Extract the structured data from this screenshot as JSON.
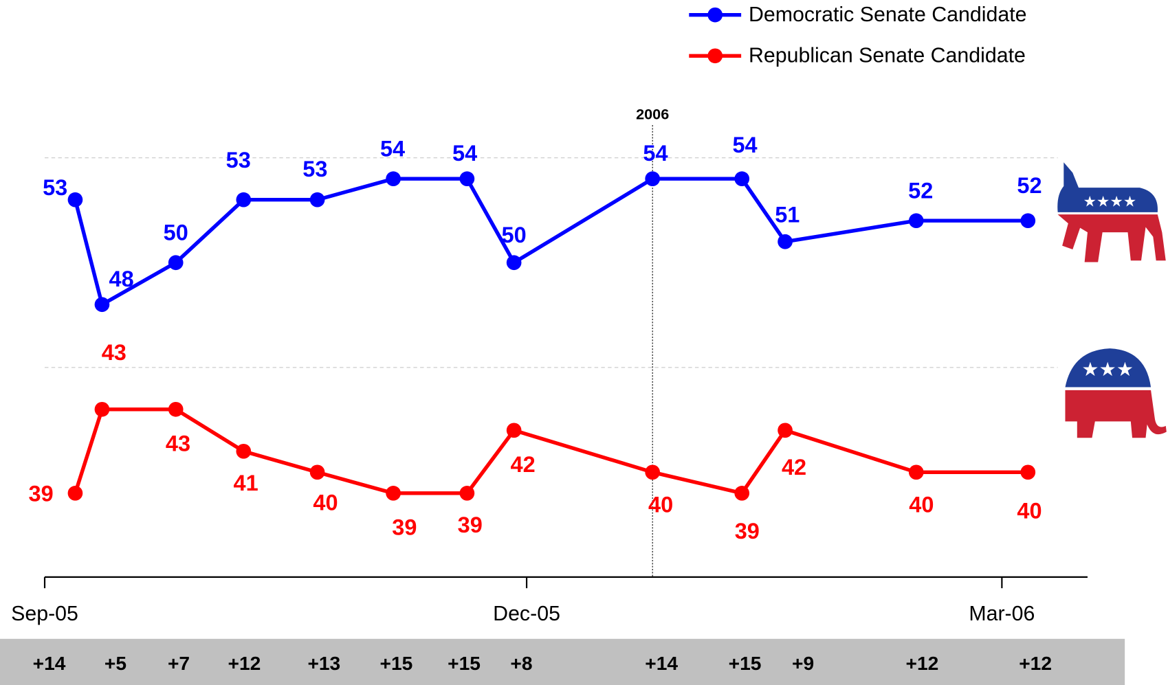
{
  "chart_data": {
    "type": "line",
    "annotation": "2006",
    "x_tick_labels": [
      "Sep-05",
      "Dec-05",
      "Mar-06"
    ],
    "categories": [
      null,
      null,
      null,
      null,
      null,
      null,
      null,
      null,
      null,
      null,
      null,
      null,
      null
    ],
    "series": [
      {
        "name": "Democratic Senate Candidate",
        "color": "#0000ff",
        "values": [
          53,
          48,
          50,
          53,
          53,
          54,
          54,
          50,
          54,
          54,
          51,
          52,
          52
        ]
      },
      {
        "name": "Republican Senate Candidate",
        "color": "#ff0000",
        "values": [
          39,
          43,
          43,
          41,
          40,
          39,
          39,
          42,
          40,
          39,
          42,
          40,
          40
        ]
      }
    ],
    "margins": [
      "+14",
      "+5",
      "+7",
      "+12",
      "+13",
      "+15",
      "+15",
      "+8",
      "+14",
      "+15",
      "+9",
      "+12",
      "+12"
    ],
    "ylim": [
      35,
      58
    ],
    "grid_lines": [
      45,
      55
    ],
    "legend": "top-right"
  }
}
